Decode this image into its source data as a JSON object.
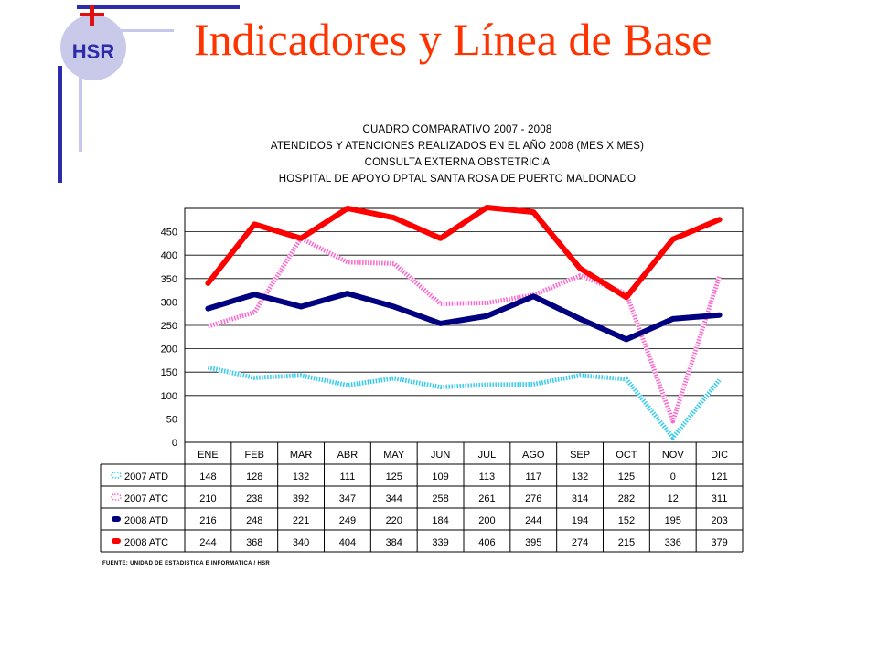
{
  "slide": {
    "title": "Indicadores y Línea de Base",
    "logo_text": "HSR"
  },
  "colors": {
    "title": "#ff3300",
    "deco_dark": "#2c2caa",
    "deco_light": "#c7c7ee",
    "logo_circle": "#c9c9ea",
    "logo_letters": "#2c2caa",
    "logo_cross": "#e01010"
  },
  "chart_data": {
    "type": "line",
    "title_lines": [
      "CUADRO COMPARATIVO 2007 - 2008",
      "ATENDIDOS Y ATENCIONES  REALIZADOS EN  EL AÑO 2008 (MES X MES)",
      "CONSULTA EXTERNA OBSTETRICIA",
      "HOSPITAL DE APOYO DPTAL SANTA ROSA DE PUERTO MALDONADO"
    ],
    "categories": [
      "ENE",
      "FEB",
      "MAR",
      "ABR",
      "MAY",
      "JUN",
      "JUL",
      "AGO",
      "SEP",
      "OCT",
      "NOV",
      "DIC"
    ],
    "ylim": [
      0,
      500
    ],
    "yticks": [
      0,
      50,
      100,
      150,
      200,
      250,
      300,
      350,
      400,
      450
    ],
    "grid": true,
    "legend_placement": "data-table",
    "series": [
      {
        "name": "2007 ATD",
        "color": "#33ccee",
        "style": "dotted",
        "values": [
          148,
          128,
          132,
          111,
          125,
          109,
          113,
          117,
          132,
          125,
          0,
          121
        ],
        "plotted": [
          160,
          138,
          143,
          122,
          137,
          118,
          123,
          124,
          143,
          135,
          10,
          133
        ]
      },
      {
        "name": "2007 ATC",
        "color": "#ff66cc",
        "style": "dotted",
        "values": [
          210,
          238,
          392,
          347,
          344,
          258,
          261,
          276,
          314,
          282,
          12,
          311
        ],
        "plotted": [
          248,
          278,
          436,
          385,
          382,
          296,
          298,
          315,
          356,
          318,
          45,
          355
        ]
      },
      {
        "name": "2008 ATD",
        "color": "#000080",
        "style": "solid",
        "values": [
          216,
          248,
          221,
          249,
          220,
          184,
          200,
          244,
          194,
          152,
          195,
          203
        ],
        "plotted": [
          286,
          316,
          290,
          318,
          290,
          254,
          270,
          312,
          264,
          220,
          264,
          272
        ]
      },
      {
        "name": "2008 ATC",
        "color": "#ff0000",
        "style": "solid",
        "values": [
          244,
          368,
          340,
          404,
          384,
          339,
          406,
          395,
          274,
          215,
          336,
          379
        ],
        "plotted": [
          340,
          466,
          436,
          500,
          480,
          436,
          502,
          492,
          372,
          310,
          434,
          476
        ]
      }
    ],
    "source": "FUENTE: UNIDAD DE ESTADISTICA E INFORMATICA / HSR"
  }
}
